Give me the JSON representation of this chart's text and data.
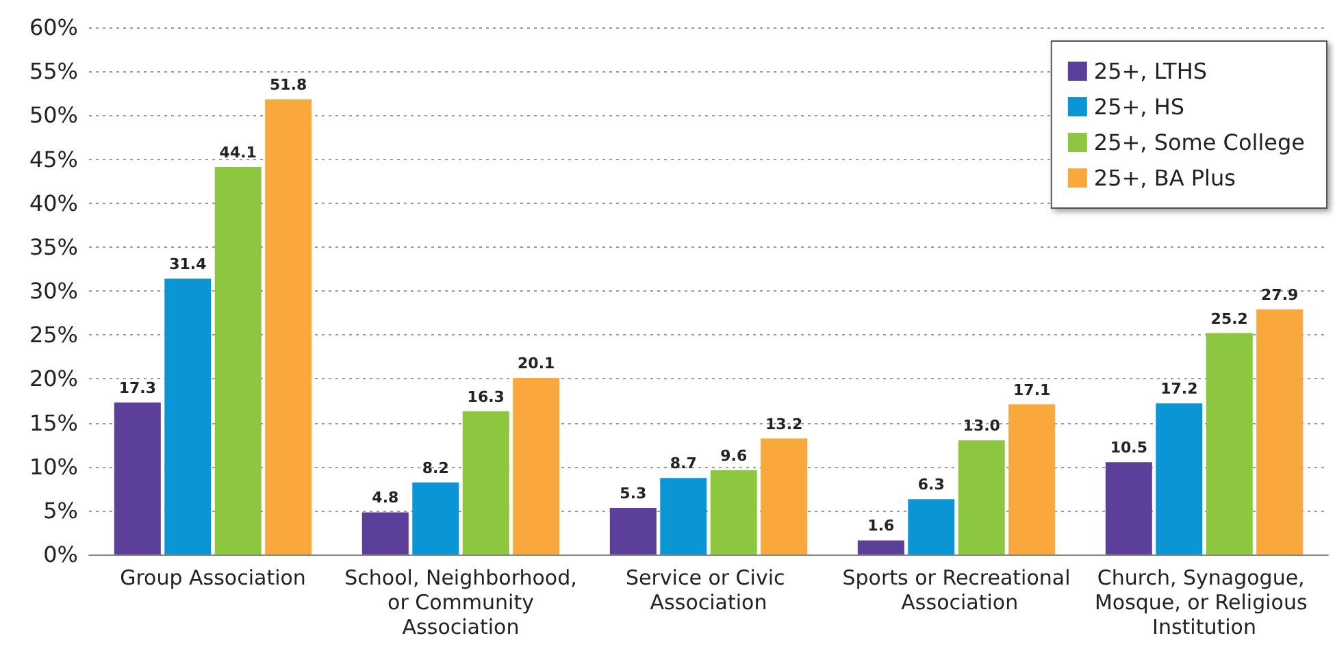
{
  "chart_data": {
    "type": "bar",
    "categories": [
      "Group Association",
      "School, Neighborhood, or Community Association",
      "Service or Civic Association",
      "Sports or Recreational Association",
      "Church, Synagogue, Mosque, or Religious Institution"
    ],
    "series": [
      {
        "name": "25+, LTHS",
        "color": "#5b3f98",
        "values": [
          17.3,
          4.8,
          5.3,
          1.6,
          10.5
        ],
        "value_labels": [
          "17.3",
          "4.8",
          "5.3",
          "1.6",
          "10.5"
        ]
      },
      {
        "name": "25+, HS",
        "color": "#0b95d4",
        "values": [
          31.4,
          8.2,
          8.7,
          6.3,
          17.2
        ],
        "value_labels": [
          "31.4",
          "8.2",
          "8.7",
          "6.3",
          "17.2"
        ]
      },
      {
        "name": "25+, Some College",
        "color": "#8dc63f",
        "values": [
          44.1,
          16.3,
          9.6,
          13.0,
          25.2
        ],
        "value_labels": [
          "44.1",
          "16.3",
          "9.6",
          "13.0",
          "25.2"
        ]
      },
      {
        "name": "25+, BA Plus",
        "color": "#f9a83b",
        "values": [
          51.8,
          20.1,
          13.2,
          17.1,
          27.9
        ],
        "value_labels": [
          "51.8",
          "20.1",
          "13.2",
          "17.1",
          "27.9"
        ]
      }
    ],
    "ylim": [
      0,
      60
    ],
    "yticks": [
      {
        "value": 0,
        "label": "0%"
      },
      {
        "value": 5,
        "label": "5%"
      },
      {
        "value": 10,
        "label": "10%"
      },
      {
        "value": 15,
        "label": "15%"
      },
      {
        "value": 20,
        "label": "20%"
      },
      {
        "value": 25,
        "label": "25%"
      },
      {
        "value": 30,
        "label": "30%"
      },
      {
        "value": 35,
        "label": "35%"
      },
      {
        "value": 40,
        "label": "40%"
      },
      {
        "value": 45,
        "label": "45%"
      },
      {
        "value": 50,
        "label": "50%"
      },
      {
        "value": 55,
        "label": "55%"
      },
      {
        "value": 60,
        "label": "60%"
      }
    ],
    "grid": "y",
    "legend": "top right"
  }
}
